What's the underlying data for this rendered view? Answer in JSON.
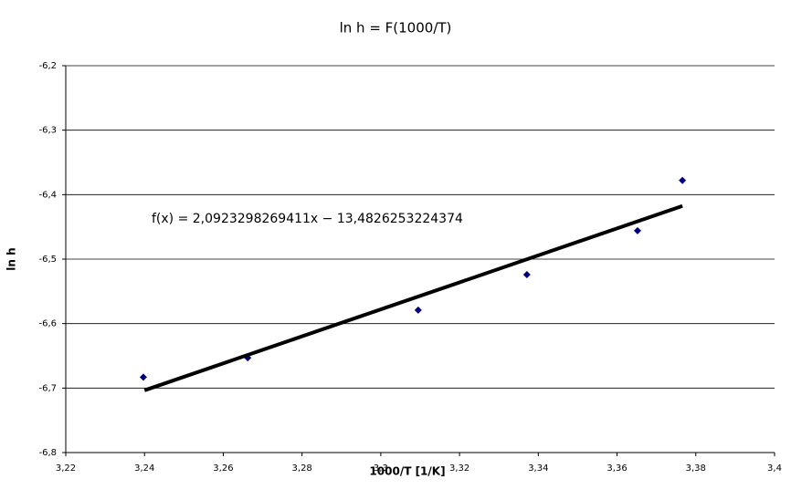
{
  "chart_data": {
    "type": "scatter",
    "title": "ln h = F(1000/T)",
    "x_label": "1000/T [1/K]",
    "y_label": "ln h",
    "annotation": "f(x) = 2,0923298269411x − 13,4826253224374",
    "series": [
      {
        "name": "ln h",
        "color": "#000080",
        "x": [
          3.2397,
          3.2662,
          3.3095,
          3.3371,
          3.3652,
          3.3766
        ],
        "values": [
          -6.683,
          -6.653,
          -6.579,
          -6.524,
          -6.456,
          -6.378
        ]
      }
    ],
    "trendline": {
      "color": "#000000",
      "x": [
        3.24,
        3.3766
      ],
      "values": [
        -6.7035,
        -6.4176
      ]
    },
    "xlim": [
      3.22,
      3.4
    ],
    "xticks": [
      {
        "value": 3.22,
        "label": "3,22"
      },
      {
        "value": 3.24,
        "label": "3,24"
      },
      {
        "value": 3.26,
        "label": "3,26"
      },
      {
        "value": 3.28,
        "label": "3,28"
      },
      {
        "value": 3.3,
        "label": "3,3"
      },
      {
        "value": 3.32,
        "label": "3,32"
      },
      {
        "value": 3.34,
        "label": "3,34"
      },
      {
        "value": 3.36,
        "label": "3,36"
      },
      {
        "value": 3.38,
        "label": "3,38"
      },
      {
        "value": 3.4,
        "label": "3,4"
      }
    ],
    "ylim": [
      -6.8,
      -6.2
    ],
    "yticks": [
      {
        "value": -6.8,
        "label": "-6,8"
      },
      {
        "value": -6.7,
        "label": "-6,7"
      },
      {
        "value": -6.6,
        "label": "-6,6"
      },
      {
        "value": -6.5,
        "label": "-6,5"
      },
      {
        "value": -6.4,
        "label": "-6,4"
      },
      {
        "value": -6.3,
        "label": "-6,3"
      },
      {
        "value": -6.2,
        "label": "-6,2"
      }
    ],
    "grid": true
  }
}
